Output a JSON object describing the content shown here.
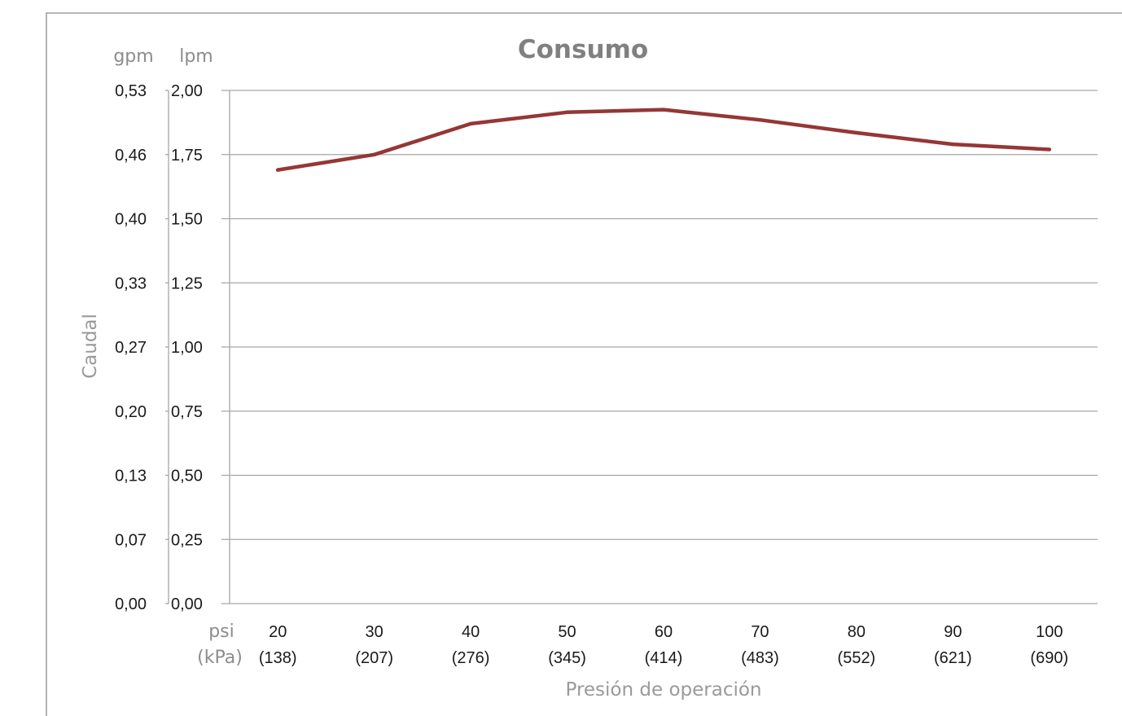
{
  "chart_data": {
    "type": "line",
    "title": "Consumo",
    "ylabel": "Caudal",
    "xlabel": "Presión de operación",
    "y_units_primary": "lpm",
    "y_units_secondary": "gpm",
    "x_units_primary": "psi",
    "x_units_secondary": "(kPa)",
    "ylim": [
      0,
      2
    ],
    "yticks_lpm": [
      "0,00",
      "0,25",
      "0,50",
      "0,75",
      "1,00",
      "1,25",
      "1,50",
      "1,75",
      "2,00"
    ],
    "yticks_gpm": [
      "0,00",
      "0,07",
      "0,13",
      "0,20",
      "0,27",
      "0,33",
      "0,40",
      "0,46",
      "0,53"
    ],
    "categories": [
      "20",
      "30",
      "40",
      "50",
      "60",
      "70",
      "80",
      "90",
      "100"
    ],
    "categories_kpa": [
      "(138)",
      "(207)",
      "(276)",
      "(345)",
      "(414)",
      "(483)",
      "(552)",
      "(621)",
      "(690)"
    ],
    "series": [
      {
        "values": [
          1.69,
          1.75,
          1.87,
          1.915,
          1.925,
          1.885,
          1.835,
          1.79,
          1.77
        ]
      }
    ],
    "grid": true,
    "legend": "none",
    "line_color": "#953735"
  }
}
